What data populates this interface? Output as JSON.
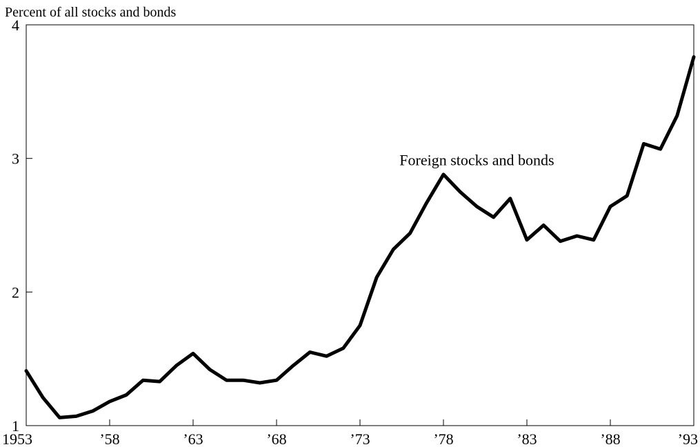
{
  "chart_data": {
    "type": "line",
    "ylabel": "Percent of all stocks and bonds",
    "xlim": [
      1953,
      1993
    ],
    "ylim": [
      1,
      4
    ],
    "y_ticks": [
      {
        "value": 1,
        "label": "1"
      },
      {
        "value": 2,
        "label": "2"
      },
      {
        "value": 3,
        "label": "3"
      },
      {
        "value": 4,
        "label": "4"
      }
    ],
    "x_ticks": [
      {
        "value": 1953,
        "label": "1953"
      },
      {
        "value": 1958,
        "label": "’58"
      },
      {
        "value": 1963,
        "label": "’63"
      },
      {
        "value": 1968,
        "label": "’68"
      },
      {
        "value": 1973,
        "label": "’73"
      },
      {
        "value": 1978,
        "label": "’78"
      },
      {
        "value": 1983,
        "label": "’83"
      },
      {
        "value": 1988,
        "label": "’88"
      },
      {
        "value": 1993,
        "label": "’93"
      }
    ],
    "grid": false,
    "annotations": [
      {
        "text": "Foreign stocks and bonds",
        "x": 1980,
        "y": 2.95
      }
    ],
    "series": [
      {
        "x": [
          1953,
          1954,
          1955,
          1956,
          1957,
          1958,
          1959,
          1960,
          1961,
          1962,
          1963,
          1964,
          1965,
          1966,
          1967,
          1968,
          1969,
          1970,
          1971,
          1972,
          1973,
          1974,
          1975,
          1976,
          1977,
          1978,
          1979,
          1980,
          1981,
          1982,
          1983,
          1984,
          1985,
          1986,
          1987,
          1988,
          1989,
          1990,
          1991,
          1992,
          1993
        ],
        "values": [
          1.41,
          1.21,
          1.06,
          1.07,
          1.11,
          1.18,
          1.23,
          1.34,
          1.33,
          1.45,
          1.54,
          1.42,
          1.34,
          1.34,
          1.32,
          1.34,
          1.45,
          1.55,
          1.52,
          1.58,
          1.75,
          2.11,
          2.32,
          2.44,
          2.67,
          2.88,
          2.75,
          2.64,
          2.56,
          2.7,
          2.39,
          2.5,
          2.38,
          2.42,
          2.39,
          2.64,
          2.72,
          3.11,
          3.07,
          3.32,
          3.76
        ],
        "color": "#000000"
      }
    ]
  }
}
